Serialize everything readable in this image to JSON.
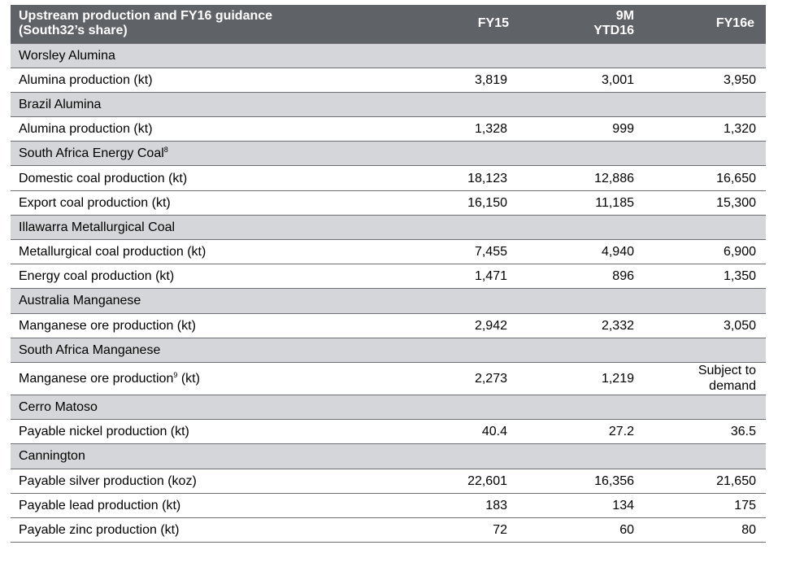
{
  "header": {
    "title_line1": "Upstream production and FY16 guidance",
    "title_line2": "(South32’s share)",
    "col_fy15": "FY15",
    "col_9m_line1": "9M",
    "col_9m_line2": "YTD16",
    "col_fy16e": "FY16e"
  },
  "sections": [
    {
      "name": "Worsley Alumina",
      "rows": [
        {
          "label": "Alumina production (kt)",
          "fy15": "3,819",
          "ytd": "3,001",
          "fy16e": "3,950"
        }
      ]
    },
    {
      "name": "Brazil Alumina",
      "rows": [
        {
          "label": "Alumina production (kt)",
          "fy15": "1,328",
          "ytd": "999",
          "fy16e": "1,320"
        }
      ]
    },
    {
      "name": "South Africa Energy Coal",
      "footnote": "8",
      "rows": [
        {
          "label": "Domestic coal production (kt)",
          "fy15": "18,123",
          "ytd": "12,886",
          "fy16e": "16,650"
        },
        {
          "label": "Export coal production (kt)",
          "fy15": "16,150",
          "ytd": "11,185",
          "fy16e": "15,300"
        }
      ]
    },
    {
      "name": "Illawarra Metallurgical Coal",
      "rows": [
        {
          "label": "Metallurgical coal production (kt)",
          "fy15": "7,455",
          "ytd": "4,940",
          "fy16e": "6,900"
        },
        {
          "label": "Energy coal production (kt)",
          "fy15": "1,471",
          "ytd": "896",
          "fy16e": "1,350"
        }
      ]
    },
    {
      "name": "Australia Manganese",
      "rows": [
        {
          "label": "Manganese ore production (kt)",
          "fy15": "2,942",
          "ytd": "2,332",
          "fy16e": "3,050"
        }
      ]
    },
    {
      "name": "South Africa Manganese",
      "rows": [
        {
          "label": "Manganese ore production",
          "label_footnote": "9",
          "label_suffix": " (kt)",
          "fy15": "2,273",
          "ytd": "1,219",
          "fy16e": "Subject to\ndemand",
          "tall": true
        }
      ]
    },
    {
      "name": "Cerro Matoso",
      "rows": [
        {
          "label": "Payable nickel production (kt)",
          "fy15": "40.4",
          "ytd": "27.2",
          "fy16e": "36.5"
        }
      ]
    },
    {
      "name": "Cannington",
      "rows": [
        {
          "label": "Payable silver production (koz)",
          "fy15": "22,601",
          "ytd": "16,356",
          "fy16e": "21,650"
        },
        {
          "label": "Payable lead production (kt)",
          "fy15": "183",
          "ytd": "134",
          "fy16e": "175"
        },
        {
          "label": "Payable zinc production (kt)",
          "fy15": "72",
          "ytd": "60",
          "fy16e": "80"
        }
      ]
    }
  ],
  "colors": {
    "header_bg": "#5f6266",
    "section_bg": "#d4d6d9",
    "rule": "#6b6e72"
  }
}
